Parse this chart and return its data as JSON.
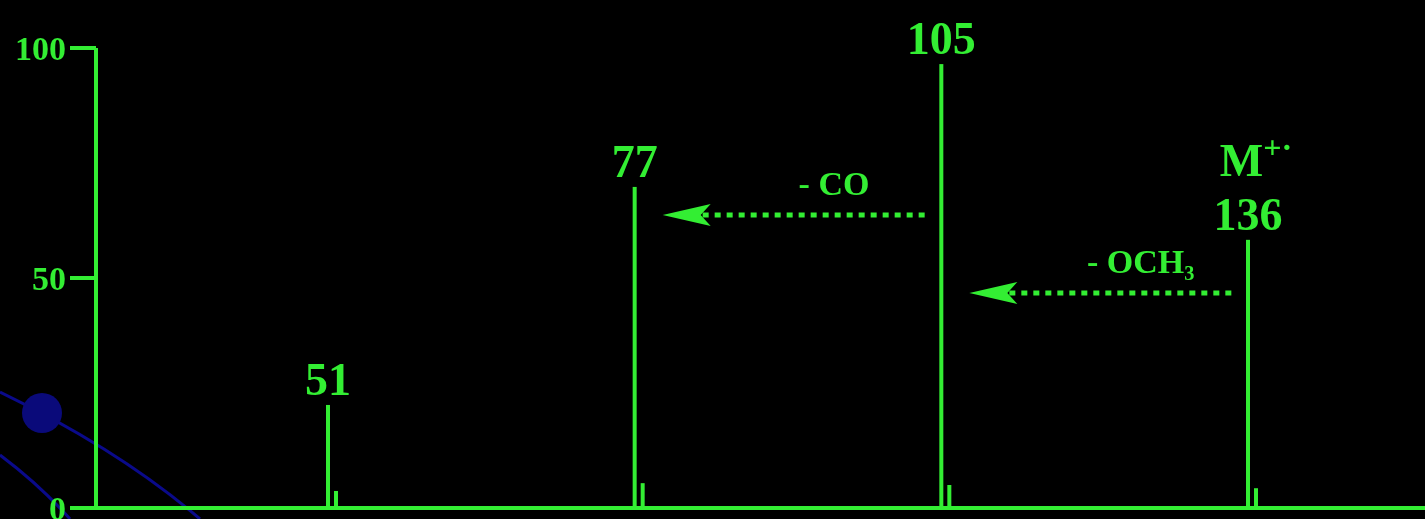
{
  "chart_data": {
    "type": "bar",
    "categories": [
      "51",
      "77",
      "105",
      "136"
    ],
    "series": [
      {
        "color": "#33ee33",
        "values": [
          22.4,
          69.8,
          96.5,
          58.3
        ]
      },
      {
        "color": "#33ee33",
        "values": [
          3.7,
          5.4,
          5,
          4.3
        ]
      }
    ],
    "ylim": [
      0,
      100
    ],
    "yticks": [
      0,
      50,
      100
    ],
    "annotations": [
      "M$^{+·}$",
      "- CO",
      "- OCH₃"
    ]
  }
}
